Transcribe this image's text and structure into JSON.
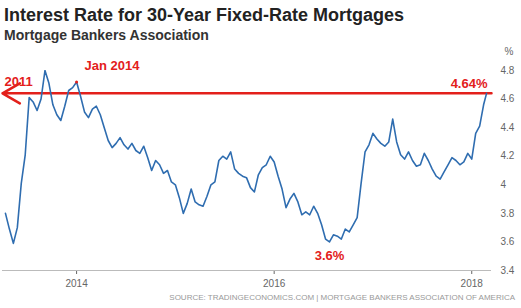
{
  "chart_data": {
    "type": "line",
    "title": "Interest Rate for 30-Year Fixed-Rate Mortgages",
    "subtitle": "Mortgage Bankers Association",
    "source": "SOURCE: TRADINGECONOMICS.COM | MORTGAGE BANKERS ASSOCIATION OF AMERICA",
    "y_label": "%",
    "color": "#2f6db0",
    "x": [
      2013.28,
      2013.32,
      2013.36,
      2013.4,
      2013.44,
      2013.48,
      2013.52,
      2013.56,
      2013.6,
      2013.64,
      2013.68,
      2013.72,
      2013.76,
      2013.8,
      2013.84,
      2013.88,
      2013.92,
      2013.96,
      2014.0,
      2014.04,
      2014.08,
      2014.12,
      2014.16,
      2014.2,
      2014.24,
      2014.28,
      2014.32,
      2014.36,
      2014.4,
      2014.44,
      2014.48,
      2014.52,
      2014.56,
      2014.6,
      2014.64,
      2014.68,
      2014.72,
      2014.76,
      2014.8,
      2014.84,
      2014.88,
      2014.92,
      2014.96,
      2015.0,
      2015.04,
      2015.08,
      2015.12,
      2015.16,
      2015.2,
      2015.24,
      2015.28,
      2015.32,
      2015.36,
      2015.4,
      2015.44,
      2015.48,
      2015.52,
      2015.56,
      2015.6,
      2015.64,
      2015.68,
      2015.72,
      2015.76,
      2015.8,
      2015.84,
      2015.88,
      2015.92,
      2015.96,
      2016.0,
      2016.04,
      2016.08,
      2016.12,
      2016.16,
      2016.2,
      2016.24,
      2016.28,
      2016.32,
      2016.36,
      2016.4,
      2016.44,
      2016.48,
      2016.52,
      2016.56,
      2016.6,
      2016.64,
      2016.68,
      2016.72,
      2016.76,
      2016.8,
      2016.84,
      2016.88,
      2016.92,
      2016.96,
      2017.0,
      2017.04,
      2017.08,
      2017.12,
      2017.16,
      2017.2,
      2017.24,
      2017.28,
      2017.32,
      2017.36,
      2017.4,
      2017.44,
      2017.48,
      2017.52,
      2017.56,
      2017.6,
      2017.64,
      2017.68,
      2017.72,
      2017.76,
      2017.8,
      2017.84,
      2017.88,
      2017.92,
      2017.96,
      2018.0,
      2018.04,
      2018.08,
      2018.12,
      2018.15
    ],
    "values": [
      3.8,
      3.69,
      3.59,
      3.7,
      4.01,
      4.21,
      4.61,
      4.58,
      4.52,
      4.6,
      4.8,
      4.71,
      4.56,
      4.49,
      4.45,
      4.55,
      4.66,
      4.68,
      4.72,
      4.62,
      4.51,
      4.47,
      4.53,
      4.55,
      4.49,
      4.4,
      4.31,
      4.26,
      4.29,
      4.33,
      4.28,
      4.25,
      4.29,
      4.24,
      4.22,
      4.27,
      4.19,
      4.1,
      4.17,
      4.14,
      4.08,
      4.1,
      4.02,
      4.0,
      3.91,
      3.8,
      3.87,
      3.97,
      3.88,
      3.86,
      3.85,
      3.92,
      4.0,
      4.02,
      4.17,
      4.2,
      4.18,
      4.23,
      4.11,
      4.08,
      4.06,
      4.05,
      3.98,
      3.95,
      4.07,
      4.12,
      4.14,
      4.2,
      4.16,
      4.06,
      3.97,
      3.84,
      3.9,
      3.94,
      3.88,
      3.79,
      3.81,
      3.79,
      3.85,
      3.8,
      3.72,
      3.62,
      3.6,
      3.65,
      3.64,
      3.62,
      3.69,
      3.67,
      3.72,
      3.77,
      4.01,
      4.23,
      4.28,
      4.36,
      4.32,
      4.29,
      4.27,
      4.3,
      4.46,
      4.3,
      4.21,
      4.18,
      4.23,
      4.17,
      4.13,
      4.14,
      4.22,
      4.17,
      4.11,
      4.06,
      4.04,
      4.09,
      4.14,
      4.19,
      4.17,
      4.14,
      4.16,
      4.22,
      4.18,
      4.36,
      4.41,
      4.56,
      4.64
    ],
    "xlim": [
      2013.25,
      2018.2
    ],
    "xticks": [
      2014,
      2016,
      2018
    ],
    "ylim": [
      3.4,
      4.8
    ],
    "yticks": [
      3.4,
      3.6,
      3.8,
      4,
      4.2,
      4.4,
      4.6,
      4.8
    ],
    "grid": false,
    "reference_line": {
      "value": 4.64,
      "color": "#e3201b"
    },
    "annotations": [
      {
        "text": "2011",
        "x": 2013.25,
        "y": 4.64,
        "color": "#e3201b"
      },
      {
        "text": "Jan 2014",
        "x": 2014.0,
        "y": 4.72,
        "color": "#e3201b"
      },
      {
        "text": "4.64%",
        "x": 2018.2,
        "y": 4.64,
        "color": "#e3201b"
      },
      {
        "text": "3.6%",
        "x": 2016.56,
        "y": 3.6,
        "color": "#e3201b"
      }
    ]
  }
}
